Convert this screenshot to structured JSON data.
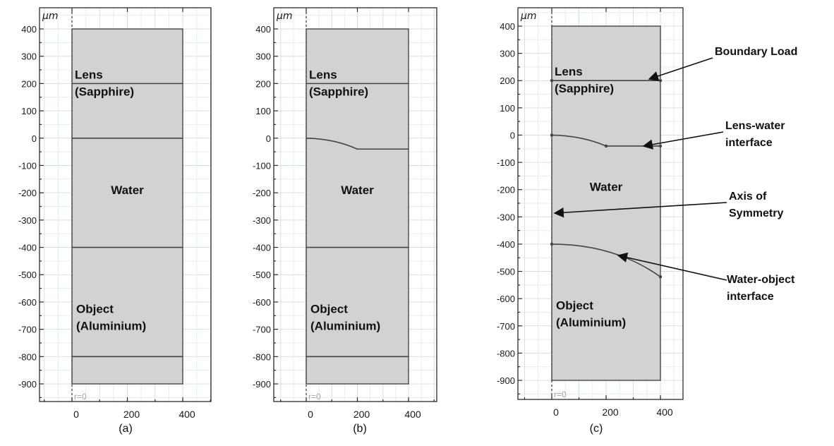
{
  "unit_label": "μm",
  "origin_label": "r=0",
  "y_ticks": [
    "400",
    "300",
    "200",
    "100",
    "0",
    "-100",
    "-200",
    "-300",
    "-400",
    "-500",
    "-600",
    "-700",
    "-800",
    "-900"
  ],
  "x_ticks": [
    "0",
    "200",
    "400"
  ],
  "panels": [
    {
      "caption": "(a)",
      "lens_label": [
        "Lens",
        "(Sapphire)"
      ],
      "water_label": "Water",
      "object_label": [
        "Object",
        "(Aluminium)"
      ]
    },
    {
      "caption": "(b)",
      "lens_label": [
        "Lens",
        "(Sapphire)"
      ],
      "water_label": "Water",
      "object_label": [
        "Object",
        "(Aluminium)"
      ]
    },
    {
      "caption": "(c)",
      "lens_label": [
        "Lens",
        "(Sapphire)"
      ],
      "water_label": "Water",
      "object_label": [
        "Object",
        "(Aluminium)"
      ],
      "annotations": [
        {
          "lines": [
            "Boundary Load"
          ]
        },
        {
          "lines": [
            "Lens-water",
            "interface"
          ]
        },
        {
          "lines": [
            "Axis of",
            "Symmetry"
          ]
        },
        {
          "lines": [
            "Water-object",
            "interface"
          ]
        }
      ]
    }
  ],
  "colors": {
    "domain_fill": "#d2d2d2",
    "grid": "#e2eef6",
    "boundary": "#444444"
  }
}
